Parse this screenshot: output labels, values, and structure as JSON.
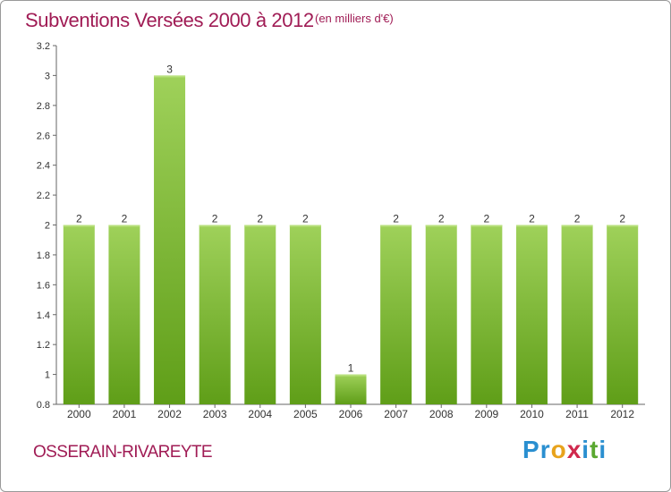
{
  "title": "Subventions Versées 2000 à 2012",
  "subtitle": "(en milliers d'€)",
  "commune": "OSSERAIN-RIVAREYTE",
  "logo": {
    "letters": [
      "P",
      "r",
      "o",
      "x",
      "i",
      "t",
      "i"
    ],
    "colors": [
      "#2a8fd0",
      "#2a8fd0",
      "#e8a31c",
      "#d0294d",
      "#2a8fd0",
      "#5aa830",
      "#2a8fd0"
    ]
  },
  "colors": {
    "bar_top": "#9fd15a",
    "bar_bottom": "#5f9e18",
    "text_accent": "#a01c55",
    "axis": "#666666"
  },
  "chart_data": {
    "type": "bar",
    "categories": [
      "2000",
      "2001",
      "2002",
      "2003",
      "2004",
      "2005",
      "2006",
      "2007",
      "2008",
      "2009",
      "2010",
      "2011",
      "2012"
    ],
    "values": [
      2,
      2,
      3,
      2,
      2,
      2,
      1,
      2,
      2,
      2,
      2,
      2,
      2
    ],
    "data_labels": [
      "2",
      "2",
      "3",
      "2",
      "2",
      "2",
      "1",
      "2",
      "2",
      "2",
      "2",
      "2",
      "2"
    ],
    "yticks": [
      "0.8",
      "1",
      "1.2",
      "1.4",
      "1.6",
      "1.8",
      "2",
      "2.2",
      "2.4",
      "2.6",
      "2.8",
      "3",
      "3.2"
    ],
    "ylim": [
      0.8,
      3.2
    ],
    "xlabel": "",
    "ylabel": "",
    "grid": false
  }
}
